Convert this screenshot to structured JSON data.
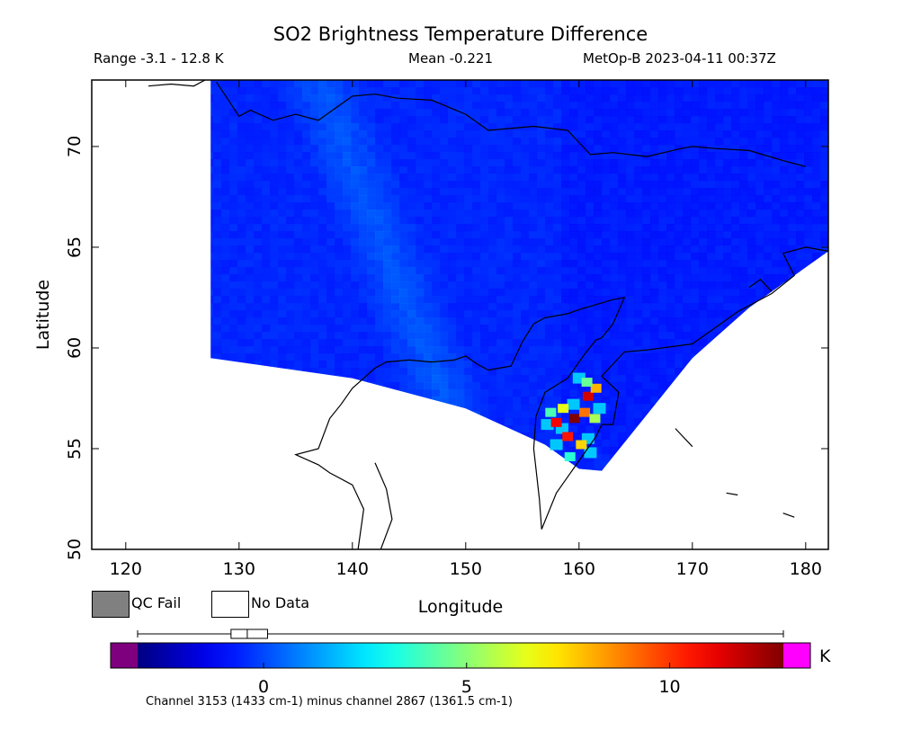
{
  "chart_data": {
    "type": "heatmap",
    "title": "SO2 Brightness Temperature Difference",
    "range_label": "Range -3.1 - 12.8 K",
    "mean_label": "Mean -0.221",
    "satellite_label": "MetOp-B 2023-04-11 00:37Z",
    "xlabel": "Longitude",
    "ylabel": "Latitude",
    "xlim": [
      117,
      182
    ],
    "ylim": [
      50,
      73.3
    ],
    "xticks": [
      120,
      130,
      140,
      150,
      160,
      170,
      180
    ],
    "yticks": [
      50,
      55,
      60,
      65,
      70
    ],
    "background_value": -0.4,
    "swath_bounds": {
      "west_lon": 127.5,
      "north_lat": 73.3,
      "southwest": [
        127.5,
        59.5
      ],
      "south_edge": [
        [
          127.5,
          59.5
        ],
        [
          140,
          58.5
        ],
        [
          150,
          57
        ],
        [
          157,
          55.2
        ],
        [
          160,
          54
        ],
        [
          162,
          53.9
        ]
      ],
      "east_edge": [
        [
          162,
          53.9
        ],
        [
          165,
          56
        ],
        [
          170,
          59.5
        ],
        [
          175,
          62
        ],
        [
          182,
          64.8
        ]
      ],
      "north_east": [
        182,
        73.3
      ]
    },
    "plume": {
      "description_values_K": [
        {
          "lon": 160.8,
          "lat": 57.6,
          "value": 11.5
        },
        {
          "lon": 159.6,
          "lat": 56.5,
          "value": 12.8
        },
        {
          "lon": 158.0,
          "lat": 56.3,
          "value": 11.0
        },
        {
          "lon": 160.5,
          "lat": 56.8,
          "value": 9.0
        },
        {
          "lon": 159.0,
          "lat": 55.6,
          "value": 10.5
        },
        {
          "lon": 160.2,
          "lat": 55.2,
          "value": 7.5
        },
        {
          "lon": 161.5,
          "lat": 58.0,
          "value": 8.0
        },
        {
          "lon": 158.6,
          "lat": 57.0,
          "value": 6.5
        },
        {
          "lon": 157.5,
          "lat": 56.8,
          "value": 4.0
        },
        {
          "lon": 161.4,
          "lat": 56.5,
          "value": 5.5
        },
        {
          "lon": 159.2,
          "lat": 54.6,
          "value": 3.5
        },
        {
          "lon": 160.7,
          "lat": 58.3,
          "value": 4.5
        }
      ]
    },
    "legend": [
      {
        "label": "QC Fail",
        "color": "#808080"
      },
      {
        "label": "No Data",
        "color": "#ffffff"
      }
    ],
    "colorbar": {
      "vmin": -3.1,
      "vmax": 12.8,
      "ticks": [
        0,
        5,
        10
      ],
      "unit": "K",
      "under_color": "#7f007f",
      "over_color": "#ff00ff",
      "boxplot": {
        "min": -3.1,
        "q1": -0.8,
        "median": -0.4,
        "q3": 0.1,
        "max": 12.8
      },
      "footnote": "Channel 3153 (1433 cm-1) minus channel 2867 (1361.5 cm-1)"
    }
  }
}
